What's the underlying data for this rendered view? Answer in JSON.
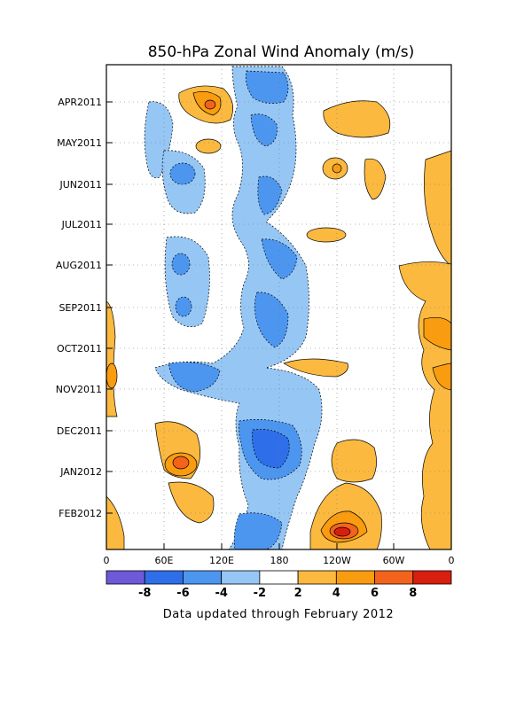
{
  "chart_data": {
    "type": "heatmap",
    "title": "850-hPa Zonal Wind Anomaly (m/s)",
    "footnote": "Data updated through February 2012",
    "x_axis": {
      "range": [
        "0",
        "0"
      ],
      "tick_labels": [
        "0",
        "60E",
        "120E",
        "180",
        "120W",
        "60W",
        "0"
      ]
    },
    "y_axis": {
      "order": "time increases downward",
      "tick_labels": [
        "APR2011",
        "MAY2011",
        "JUN2011",
        "JUL2011",
        "AUG2011",
        "SEP2011",
        "OCT2011",
        "NOV2011",
        "DEC2011",
        "JAN2012",
        "FEB2012"
      ]
    },
    "grid": true,
    "colorbar": {
      "labels": [
        "-8",
        "-6",
        "-4",
        "-2",
        "2",
        "4",
        "6",
        "8"
      ],
      "bins": [
        {
          "range": "< -8",
          "color": "#6e5ad8"
        },
        {
          "range": "-8 to -6",
          "color": "#2e6ee8"
        },
        {
          "range": "-6 to -4",
          "color": "#4c96f0"
        },
        {
          "range": "-4 to -2",
          "color": "#96c6f4"
        },
        {
          "range": "-2 to 2",
          "color": "#ffffff"
        },
        {
          "range": "2 to 4",
          "color": "#fbb93f"
        },
        {
          "range": "4 to 6",
          "color": "#fa9c10"
        },
        {
          "range": "6 to 8",
          "color": "#f3631c"
        },
        {
          "range": "> 8",
          "color": "#d81e0f"
        }
      ]
    },
    "anomaly_regions": [
      {
        "level": 4,
        "lon": 85,
        "time": "APR2011",
        "peak": 6
      },
      {
        "level": -3,
        "lon": 165,
        "time": "APR2011-MAY2011",
        "peak": -4
      },
      {
        "level": 2,
        "lon": 240,
        "time": "APR2011-MAY2011",
        "peak": 2
      },
      {
        "level": -3,
        "lon": 70,
        "time": "JUN2011",
        "peak": -4
      },
      {
        "level": -3,
        "lon": 150,
        "time": "JUN2011",
        "peak": -4
      },
      {
        "level": -3,
        "lon": 155,
        "time": "AUG2011-OCT2011",
        "peak": -6
      },
      {
        "level": -3,
        "lon": 80,
        "time": "AUG2011-SEP2011",
        "peak": -4
      },
      {
        "level": -3,
        "lon": 100,
        "time": "NOV2011",
        "peak": -4
      },
      {
        "level": -3,
        "lon": 155,
        "time": "DEC2011",
        "peak": -6
      },
      {
        "level": 3,
        "lon": 70,
        "time": "DEC2011-JAN2012",
        "peak": 6
      },
      {
        "level": 3,
        "lon": 245,
        "time": "FEB2012",
        "peak": 8
      },
      {
        "level": 2,
        "lon": 340,
        "time": "SEP2011-FEB2012",
        "peak": 4
      }
    ]
  },
  "colors": {
    "neg4": "#96c6f4",
    "neg6": "#4c96f0",
    "neg8": "#2e6ee8",
    "neg_extreme": "#6e5ad8",
    "pos4": "#fbb93f",
    "pos6": "#fa9c10",
    "pos8": "#f3631c",
    "pos_extreme": "#d81e0f"
  }
}
